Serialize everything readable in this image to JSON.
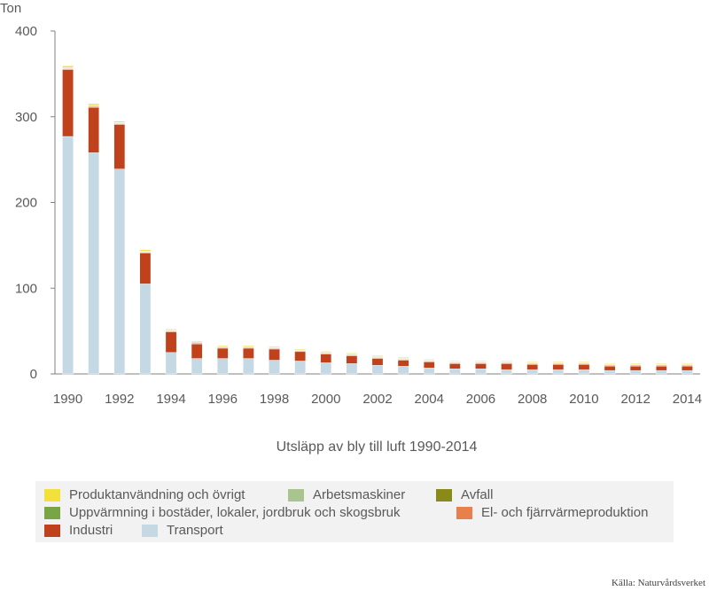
{
  "chart_data": {
    "type": "bar",
    "stacked": true,
    "title": "Utsläpp av bly till luft 1990-2014",
    "ylabel": "Ton",
    "xlabel": "",
    "ylim": [
      0,
      400
    ],
    "yticks": [
      0,
      100,
      200,
      300,
      400
    ],
    "categories": [
      "1990",
      "1991",
      "1992",
      "1993",
      "1994",
      "1995",
      "1996",
      "1997",
      "1998",
      "1999",
      "2000",
      "2001",
      "2002",
      "2003",
      "2004",
      "2005",
      "2006",
      "2007",
      "2008",
      "2009",
      "2010",
      "2011",
      "2012",
      "2013",
      "2014"
    ],
    "xtick_labels": [
      "1990",
      "1992",
      "1994",
      "1996",
      "1998",
      "2000",
      "2002",
      "2004",
      "2006",
      "2008",
      "2010",
      "2012",
      "2014"
    ],
    "series": [
      {
        "name": "Transport",
        "color": "#c5d9e4",
        "values": [
          277,
          258,
          239,
          105,
          25,
          18,
          18,
          18,
          16,
          15,
          13,
          12,
          10,
          9,
          7,
          6,
          6,
          5,
          5,
          5,
          5,
          4,
          4,
          4,
          4
        ]
      },
      {
        "name": "Industri",
        "color": "#c0421c",
        "values": [
          78,
          53,
          52,
          36,
          24,
          17,
          12,
          12,
          13,
          11,
          10,
          9,
          8,
          7,
          7,
          6,
          6,
          7,
          6,
          6,
          6,
          5,
          5,
          5,
          5
        ]
      },
      {
        "name": "El- och fjärrvärmeproduktion",
        "color": "#e8804c",
        "values": [
          1,
          1,
          1,
          1,
          1,
          1,
          1,
          1,
          1,
          1,
          1,
          1,
          1,
          1,
          1,
          1,
          1,
          1,
          1,
          1,
          1,
          1,
          1,
          1,
          1
        ]
      },
      {
        "name": "Uppvärmning i bostäder, lokaler, jordbruk och skogsbruk",
        "color": "#7aa545",
        "values": [
          0.5,
          0.5,
          0.5,
          0.5,
          0.5,
          0.5,
          0.5,
          0.5,
          0.5,
          0.5,
          0.5,
          0.5,
          0.5,
          0.5,
          0.5,
          0.5,
          0.5,
          0.5,
          0.5,
          0.5,
          0.5,
          0.5,
          0.5,
          0.5,
          0.5
        ]
      },
      {
        "name": "Avfall",
        "color": "#8a8a1a",
        "values": [
          0.3,
          0.3,
          0.3,
          0.3,
          0.3,
          0.3,
          0.3,
          0.3,
          0.3,
          0.3,
          0.3,
          0.3,
          0.3,
          0.3,
          0.3,
          0.3,
          0.3,
          0.3,
          0.3,
          0.3,
          0.3,
          0.3,
          0.3,
          0.3,
          0.3
        ]
      },
      {
        "name": "Arbetsmaskiner",
        "color": "#a9c48f",
        "values": [
          0.5,
          0.5,
          0.5,
          0.5,
          0.5,
          0.5,
          0.5,
          0.5,
          0.5,
          0.5,
          0.5,
          0.5,
          0.5,
          0.5,
          0.5,
          0.5,
          0.5,
          0.5,
          0.5,
          0.5,
          0.5,
          0.5,
          0.5,
          0.5,
          0.5
        ]
      },
      {
        "name": "Produktanvändning och övrigt",
        "color": "#f2e13a",
        "values": [
          2,
          2,
          1.5,
          1.5,
          1,
          1,
          1,
          1,
          1,
          1,
          1,
          1,
          1,
          1,
          0.8,
          0.8,
          0.8,
          0.8,
          0.8,
          0.8,
          0.8,
          0.8,
          0.8,
          0.8,
          0.8
        ]
      }
    ],
    "grid": false,
    "legend_position": "bottom"
  },
  "legend": {
    "items": [
      {
        "label": "Produktanvändning och övrigt",
        "color": "#f2e13a"
      },
      {
        "label": "Arbetsmaskiner",
        "color": "#a9c48f"
      },
      {
        "label": "Avfall",
        "color": "#8a8a1a"
      },
      {
        "label": "Uppvärmning i bostäder, lokaler, jordbruk och skogsbruk",
        "color": "#7aa545"
      },
      {
        "label": "El- och fjärrvärmeproduktion",
        "color": "#e8804c"
      },
      {
        "label": "Industri",
        "color": "#c0421c"
      },
      {
        "label": "Transport",
        "color": "#c5d9e4"
      }
    ]
  },
  "source": "Källa: Naturvårdsverket"
}
